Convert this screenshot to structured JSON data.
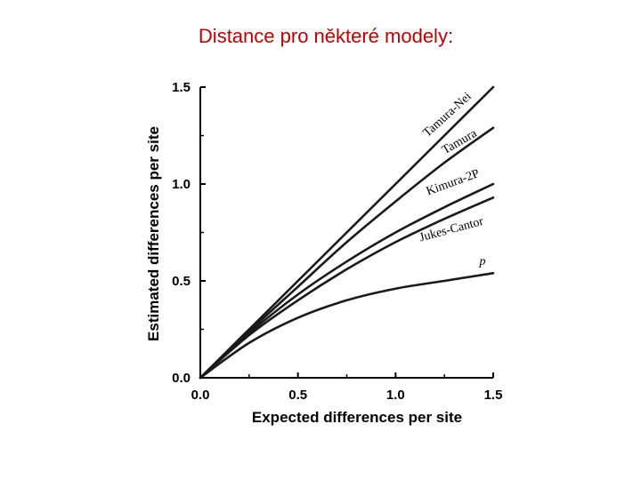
{
  "slide": {
    "title": "Distance pro některé modely:"
  },
  "chart_data": {
    "type": "line",
    "xlabel": "Expected differences per site",
    "ylabel": "Estimated differences per site",
    "xlim": [
      0,
      1.5
    ],
    "ylim": [
      0,
      1.5
    ],
    "x_ticks": [
      "0.0",
      "0.5",
      "1.0",
      "1.5"
    ],
    "y_ticks": [
      "0.0",
      "0.5",
      "1.0",
      "1.5"
    ],
    "grid": false,
    "legend": "inline curve labels",
    "series": [
      {
        "name": "Tamura-Nei",
        "x": [
          0,
          0.25,
          0.5,
          0.75,
          1.0,
          1.25,
          1.5
        ],
        "y": [
          0,
          0.25,
          0.5,
          0.75,
          1.0,
          1.25,
          1.5
        ]
      },
      {
        "name": "Tamura",
        "x": [
          0,
          0.25,
          0.5,
          0.75,
          1.0,
          1.25,
          1.5
        ],
        "y": [
          0,
          0.24,
          0.47,
          0.7,
          0.91,
          1.11,
          1.29
        ]
      },
      {
        "name": "Kimura-2P",
        "x": [
          0,
          0.25,
          0.5,
          0.75,
          1.0,
          1.25,
          1.5
        ],
        "y": [
          0,
          0.23,
          0.43,
          0.6,
          0.75,
          0.88,
          1.0
        ]
      },
      {
        "name": "Jukes-Cantor",
        "x": [
          0,
          0.25,
          0.5,
          0.75,
          1.0,
          1.25,
          1.5
        ],
        "y": [
          0,
          0.22,
          0.4,
          0.56,
          0.7,
          0.82,
          0.93
        ]
      },
      {
        "name": "p",
        "x": [
          0,
          0.25,
          0.5,
          0.75,
          1.0,
          1.25,
          1.5
        ],
        "y": [
          0,
          0.18,
          0.31,
          0.4,
          0.46,
          0.5,
          0.54
        ]
      }
    ]
  }
}
